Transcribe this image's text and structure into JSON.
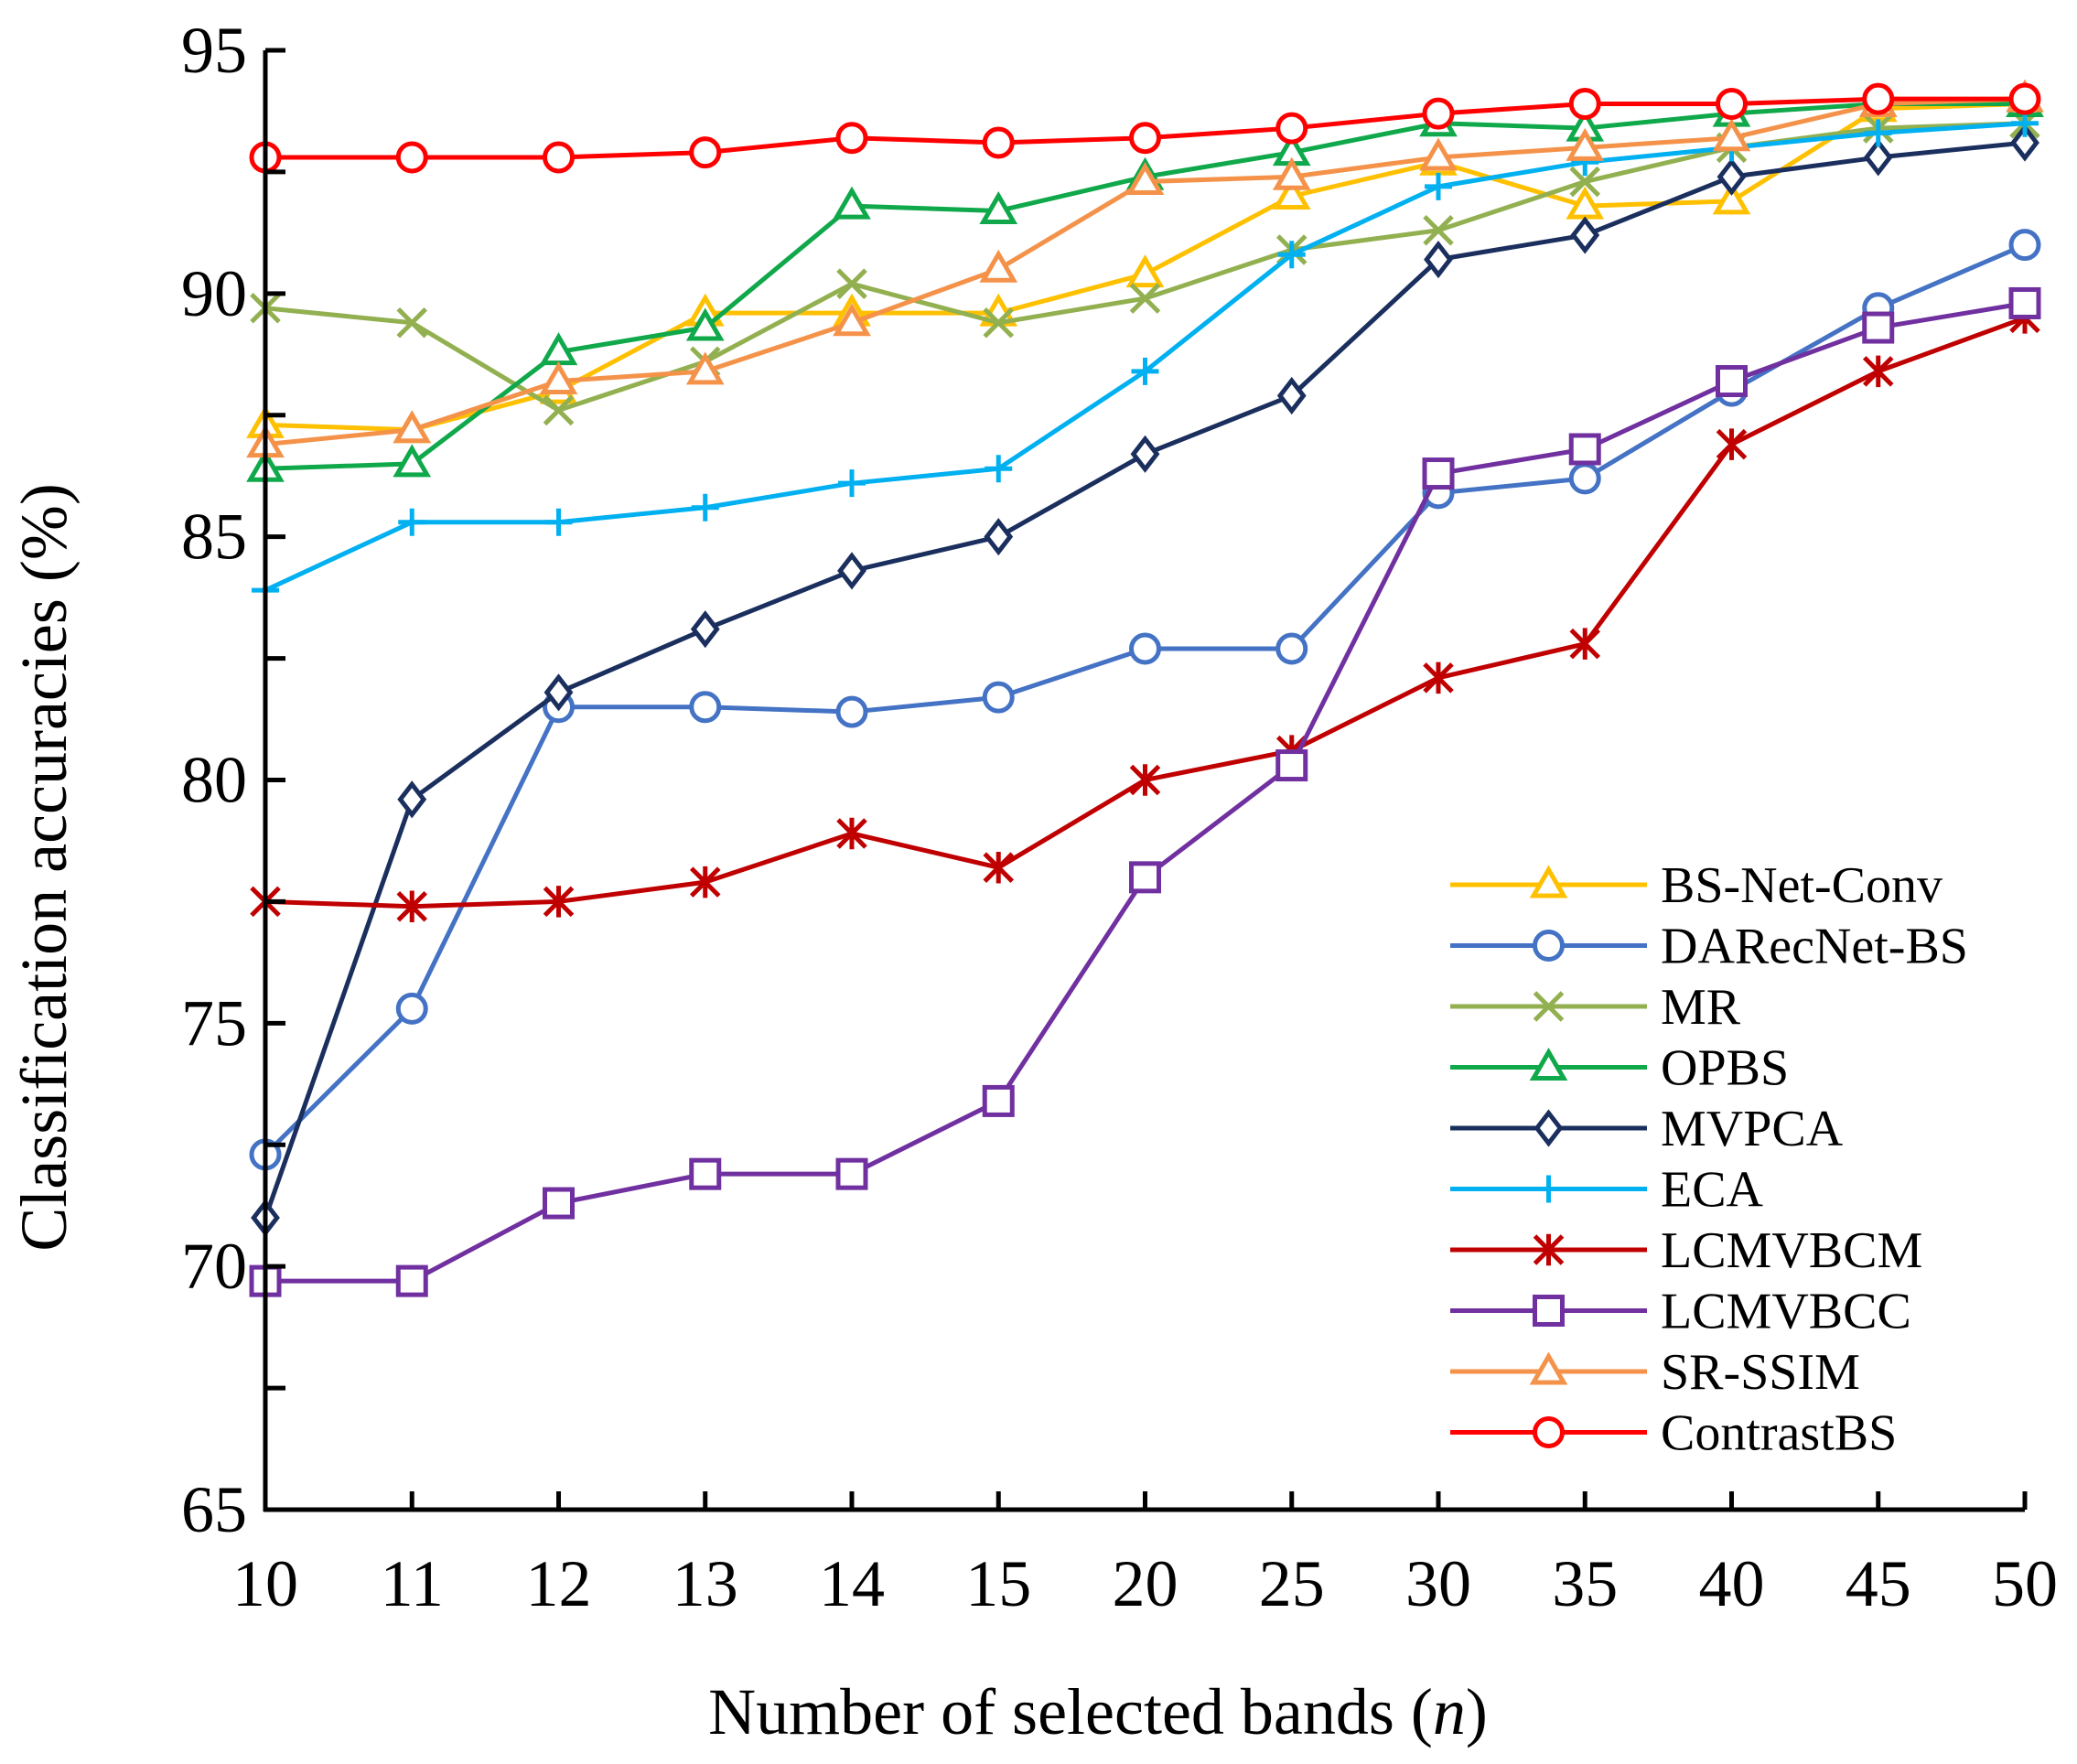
{
  "chart_data": {
    "type": "line",
    "title": "",
    "xlabel": "Number of selected bands",
    "xlabel_var": "n",
    "ylabel": "Classification accuracies (%)",
    "ylim": [
      65,
      95
    ],
    "yticks": [
      65,
      70,
      75,
      80,
      85,
      90,
      95
    ],
    "grid": false,
    "legend_position": "bottom-right",
    "categories": [
      "10",
      "11",
      "12",
      "13",
      "14",
      "15",
      "20",
      "25",
      "30",
      "35",
      "40",
      "45",
      "50"
    ],
    "series": [
      {
        "name": "BS-Net-Conv",
        "color": "#FFC000",
        "marker": "triangle",
        "values": [
          87.3,
          87.2,
          88.0,
          89.6,
          89.6,
          89.6,
          90.4,
          92.0,
          92.7,
          91.8,
          91.9,
          93.8,
          93.9
        ]
      },
      {
        "name": "DARecNet-BS",
        "color": "#4472C4",
        "marker": "circle",
        "values": [
          72.3,
          75.3,
          81.5,
          81.5,
          81.4,
          81.7,
          82.7,
          82.7,
          85.9,
          86.2,
          88.0,
          89.7,
          91.0
        ]
      },
      {
        "name": "MR",
        "color": "#92B050",
        "marker": "x",
        "values": [
          89.7,
          89.4,
          87.6,
          88.6,
          90.2,
          89.4,
          89.9,
          90.9,
          91.3,
          92.3,
          93.0,
          93.4,
          93.5
        ]
      },
      {
        "name": "OPBS",
        "color": "#0FA84A",
        "marker": "triangle",
        "values": [
          86.4,
          86.5,
          88.8,
          89.3,
          91.8,
          91.7,
          92.4,
          92.9,
          93.5,
          93.4,
          93.7,
          93.9,
          93.9
        ]
      },
      {
        "name": "MVPCA",
        "color": "#1B2F5E",
        "marker": "diamond",
        "values": [
          71.0,
          79.6,
          81.8,
          83.1,
          84.3,
          85.0,
          86.7,
          87.9,
          90.7,
          91.2,
          92.4,
          92.8,
          93.1
        ]
      },
      {
        "name": "ECA",
        "color": "#00B0F0",
        "marker": "plus",
        "values": [
          83.9,
          85.3,
          85.3,
          85.6,
          86.1,
          86.4,
          88.4,
          90.8,
          92.2,
          92.7,
          93.0,
          93.3,
          93.5
        ]
      },
      {
        "name": "LCMVBCM",
        "color": "#C00000",
        "marker": "star",
        "values": [
          77.5,
          77.4,
          77.5,
          77.9,
          78.9,
          78.2,
          80.0,
          80.6,
          82.1,
          82.8,
          86.9,
          88.4,
          89.5
        ]
      },
      {
        "name": "LCMVBCC",
        "color": "#7030A0",
        "marker": "square",
        "values": [
          69.7,
          69.7,
          71.3,
          71.9,
          71.9,
          73.4,
          78.0,
          80.3,
          86.3,
          86.8,
          88.2,
          89.3,
          89.8
        ]
      },
      {
        "name": "SR-SSIM",
        "color": "#F4924A",
        "marker": "triangle",
        "values": [
          86.9,
          87.2,
          88.2,
          88.4,
          89.4,
          90.5,
          92.3,
          92.4,
          92.8,
          93.0,
          93.2,
          93.9,
          94.0
        ]
      },
      {
        "name": "ContrastBS",
        "color": "#FF0000",
        "marker": "circle",
        "values": [
          92.8,
          92.8,
          92.8,
          92.9,
          93.2,
          93.1,
          93.2,
          93.4,
          93.7,
          93.9,
          93.9,
          94.0,
          94.0
        ]
      }
    ]
  }
}
